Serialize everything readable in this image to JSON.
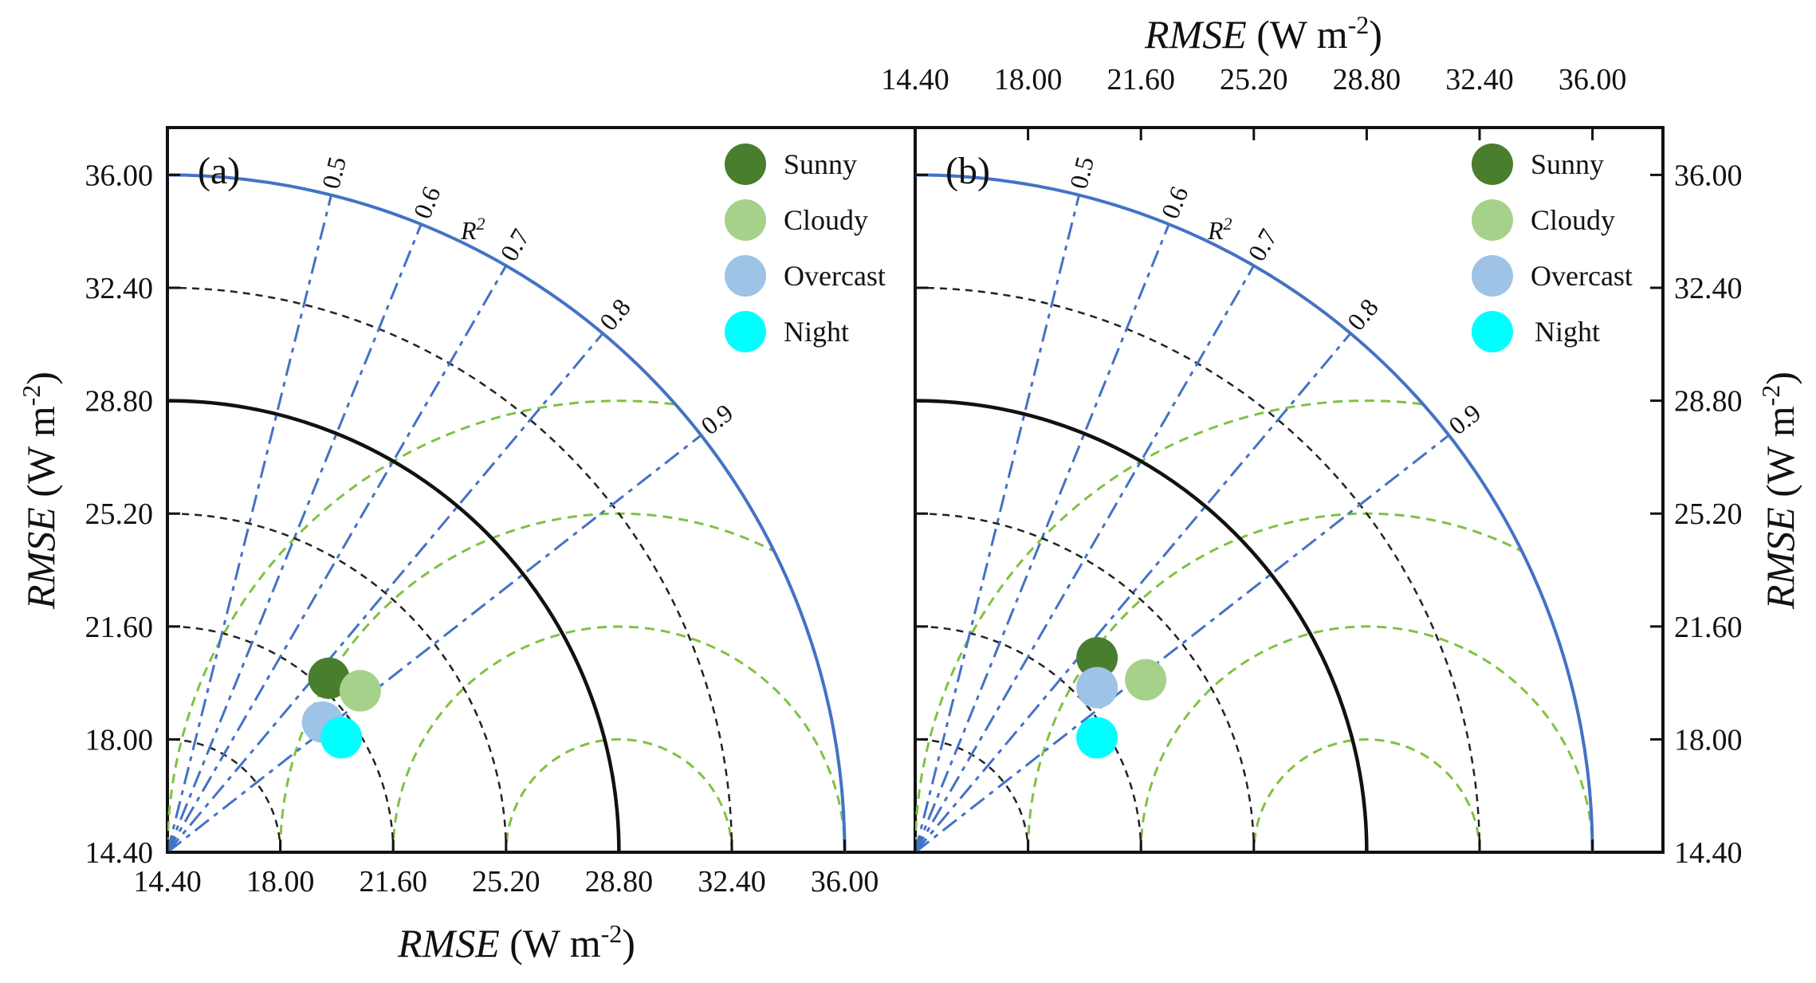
{
  "chart_data": [
    {
      "type": "scatter",
      "subtype": "taylor-diagram",
      "panel_label": "(a)",
      "xlabel": {
        "italic": "RMSE",
        "unit": " (W m",
        "sup": "-2",
        "close": ")"
      },
      "ylabel": {
        "italic": "RMSE",
        "unit": " (W m",
        "sup": "-2",
        "close": ")"
      },
      "axis_range": [
        14.4,
        36.0
      ],
      "ticks": [
        "14.40",
        "18.00",
        "21.60",
        "25.20",
        "28.80",
        "32.40",
        "36.00"
      ],
      "r2_header": "R",
      "r2_header_sup": "2",
      "r2_labels": [
        "0.5",
        "0.6",
        "0.7",
        "0.8",
        "0.9"
      ],
      "legend": [
        "Sunny",
        "Cloudy",
        "Overcast",
        "Night"
      ],
      "series": [
        {
          "name": "Sunny",
          "color": "#4a7e2f",
          "x": 19.55,
          "y": 19.95
        },
        {
          "name": "Cloudy",
          "color": "#a5d18a",
          "x": 20.55,
          "y": 19.55
        },
        {
          "name": "Overcast",
          "color": "#9dc3e6",
          "x": 19.35,
          "y": 18.55
        },
        {
          "name": "Night",
          "color": "#00ffff",
          "x": 19.95,
          "y": 18.05
        }
      ]
    },
    {
      "type": "scatter",
      "subtype": "taylor-diagram",
      "panel_label": "(b)",
      "xlabel": {
        "italic": "RMSE",
        "unit": " (W m",
        "sup": "-2",
        "close": ")"
      },
      "ylabel": {
        "italic": "RMSE",
        "unit": " (W m",
        "sup": "-2",
        "close": ")"
      },
      "axis_range": [
        14.4,
        36.0
      ],
      "ticks": [
        "14.40",
        "18.00",
        "21.60",
        "25.20",
        "28.80",
        "32.40",
        "36.00"
      ],
      "r2_header": "R",
      "r2_header_sup": "2",
      "r2_labels": [
        "0.5",
        "0.6",
        "0.7",
        "0.8",
        "0.9"
      ],
      "legend": [
        "Sunny",
        "Cloudy",
        "Overcast",
        "Night"
      ],
      "series": [
        {
          "name": "Sunny",
          "color": "#4a7e2f",
          "x": 20.2,
          "y": 20.6
        },
        {
          "name": "Cloudy",
          "color": "#a5d18a",
          "x": 21.75,
          "y": 19.9
        },
        {
          "name": "Overcast",
          "color": "#9dc3e6",
          "x": 20.2,
          "y": 19.65
        },
        {
          "name": "Night",
          "color": "#00ffff",
          "x": 20.2,
          "y": 18.05
        }
      ]
    }
  ],
  "colors": {
    "outer_arc": "#4472c4",
    "reference_arc": "#111111",
    "rms_circles": "#7fc241",
    "correlation_lines": "#4472c4",
    "std_circles": "#222222"
  }
}
